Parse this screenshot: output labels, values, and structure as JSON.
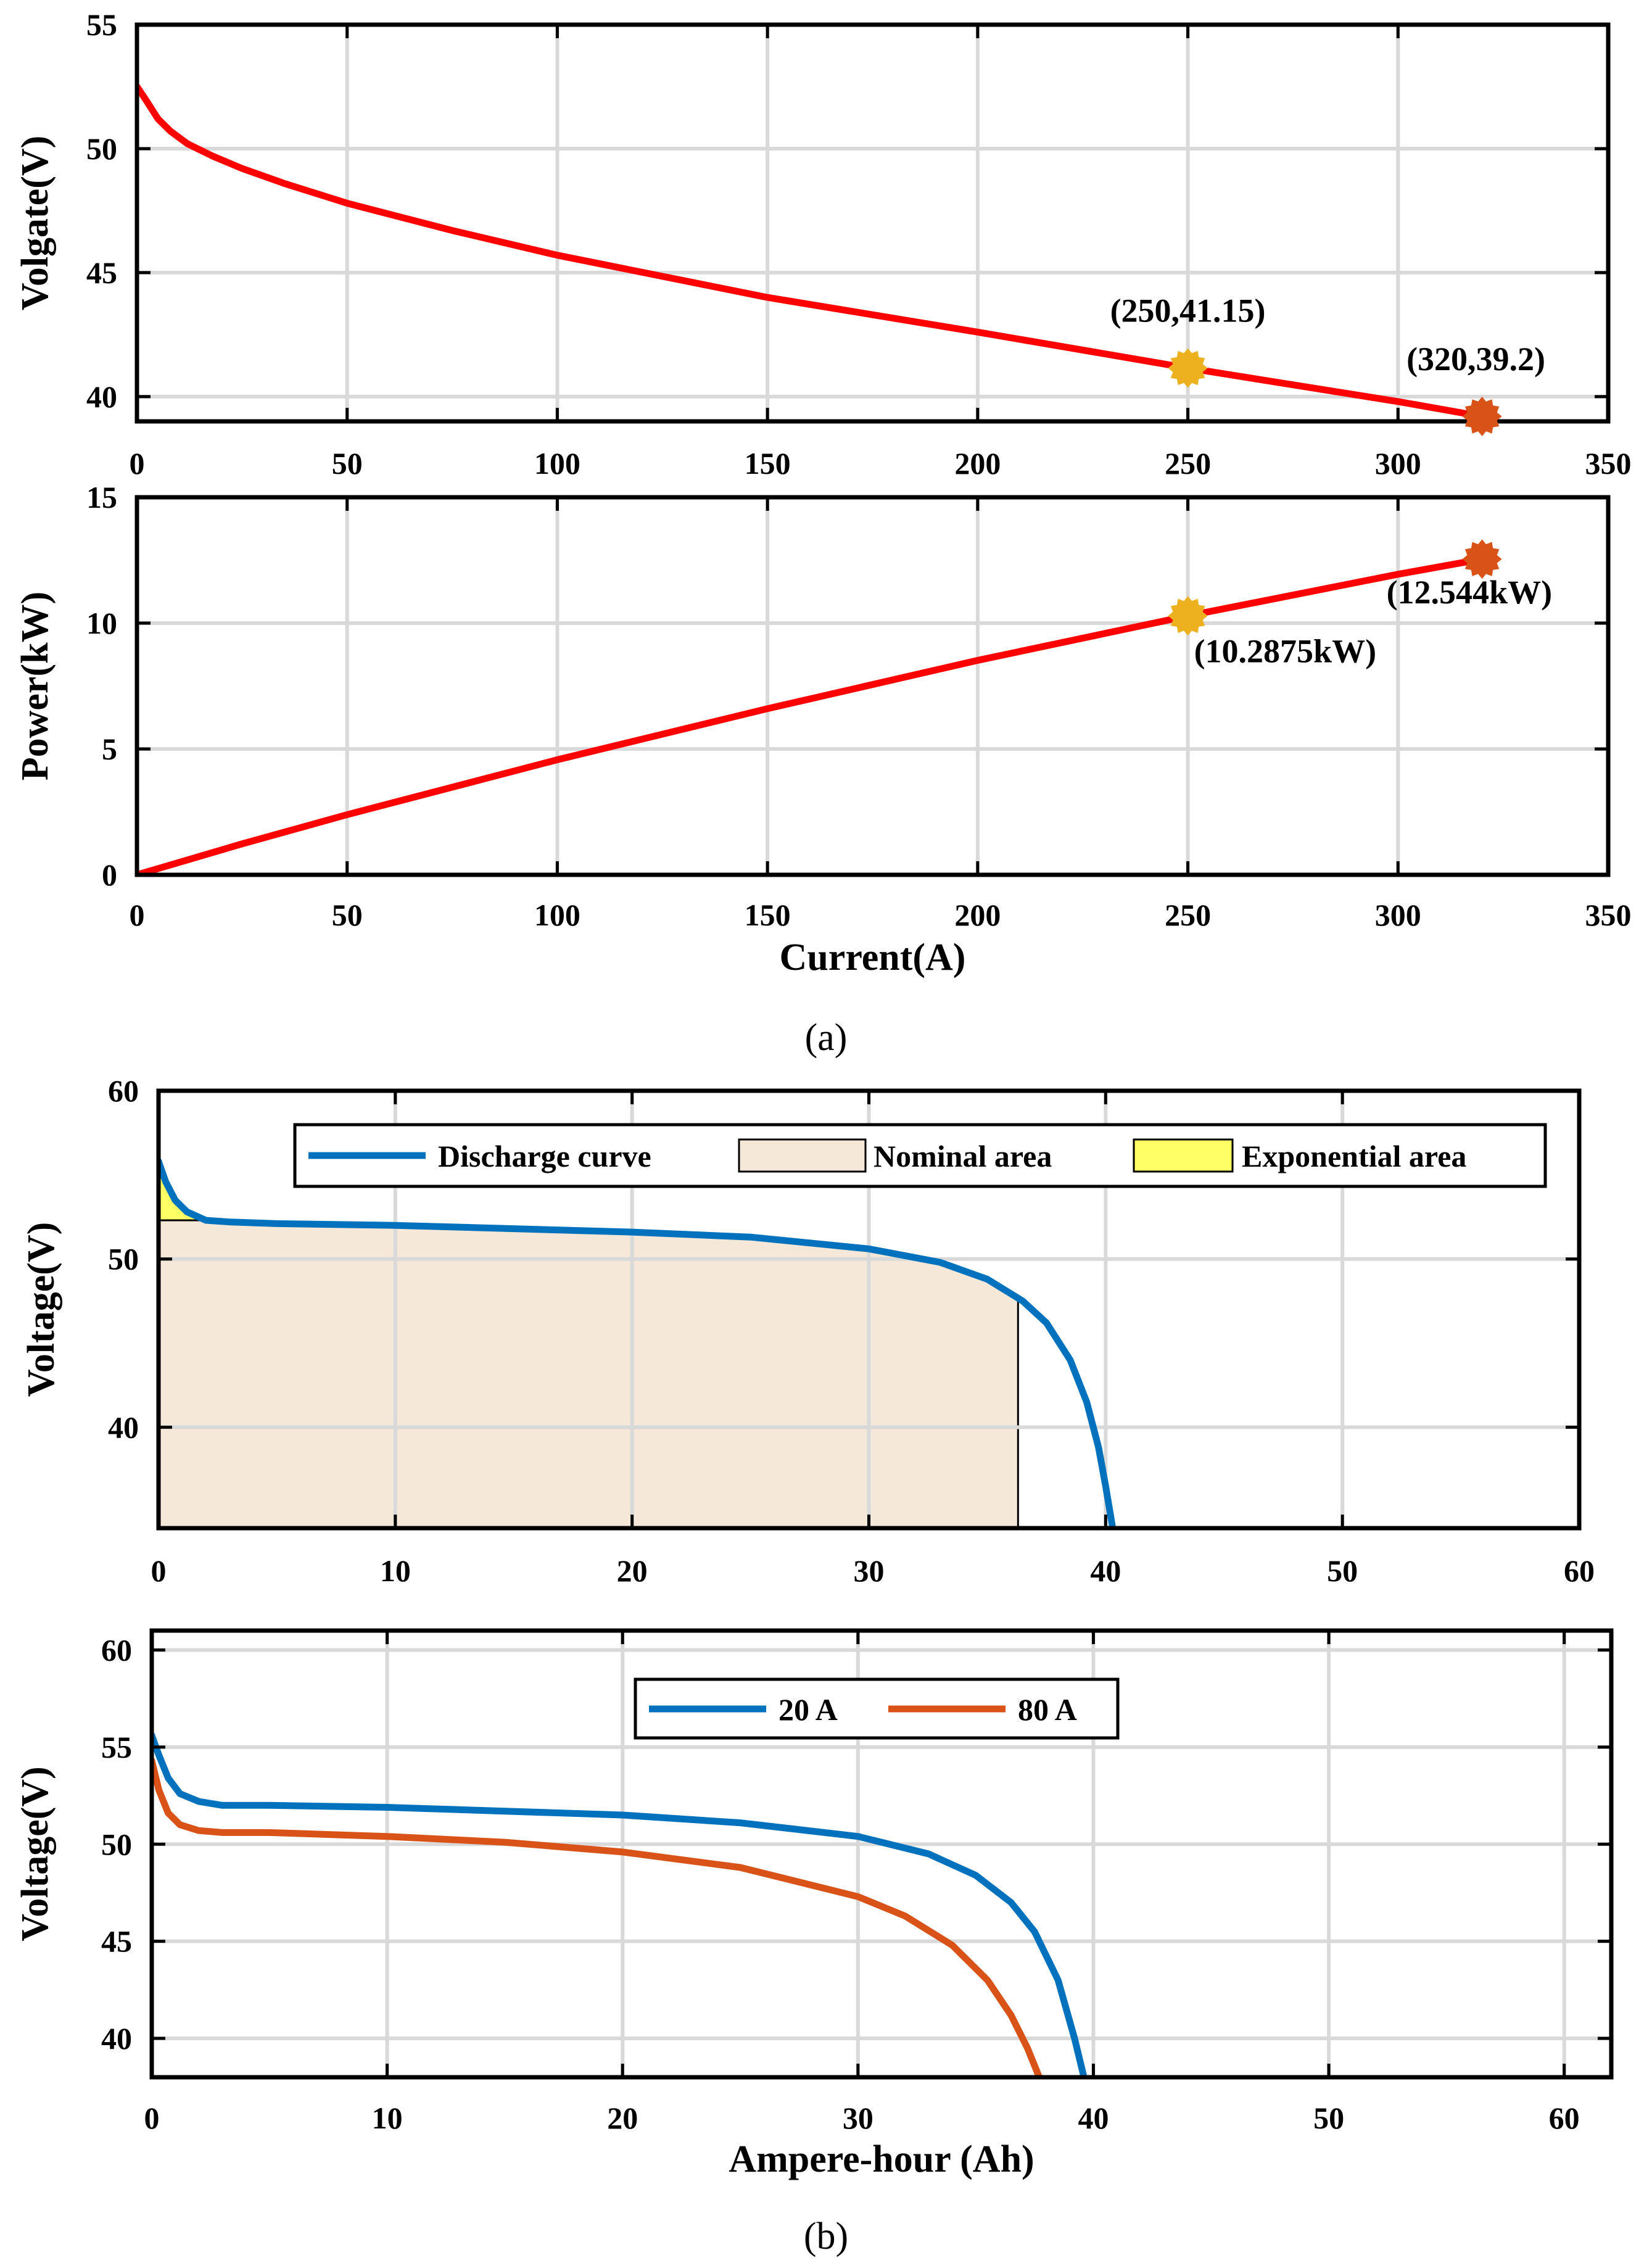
{
  "captions": {
    "a": "(a)",
    "b": "(b)"
  },
  "colors": {
    "red_curve": "#ff0000",
    "blue_curve": "#0072bd",
    "orange_curve": "#d95319",
    "marker_yellow": "#edb120",
    "marker_orange": "#d95319",
    "nominal_fill": "#f5e8d8",
    "exponential_fill": "#ffff66",
    "grid": "#d9d9d9"
  },
  "chart_data": [
    {
      "id": "voltage_vs_current",
      "type": "line",
      "title": "",
      "xlabel": "",
      "ylabel": "Volgate(V)",
      "xlim": [
        0,
        350
      ],
      "ylim": [
        39,
        55
      ],
      "xticks": [
        "0",
        "50",
        "100",
        "150",
        "200",
        "250",
        "300",
        "350"
      ],
      "yticks": [
        "40",
        "45",
        "50",
        "55"
      ],
      "grid": true,
      "series": [
        {
          "name": "Voltage",
          "color": "#ff0000",
          "x": [
            0,
            2,
            5,
            8,
            12,
            18,
            25,
            35,
            50,
            75,
            100,
            150,
            200,
            250,
            300,
            320
          ],
          "y": [
            52.5,
            52.0,
            51.2,
            50.7,
            50.2,
            49.7,
            49.2,
            48.6,
            47.8,
            46.7,
            45.7,
            44.0,
            42.6,
            41.15,
            39.8,
            39.2
          ]
        }
      ],
      "markers": [
        {
          "x": 250,
          "y": 41.15,
          "color": "#edb120",
          "label": "(250,41.15)"
        },
        {
          "x": 320,
          "y": 39.2,
          "color": "#d95319",
          "label": "(320,39.2)"
        }
      ]
    },
    {
      "id": "power_vs_current",
      "type": "line",
      "title": "",
      "xlabel": "Current(A)",
      "ylabel": "Power(kW)",
      "xlim": [
        0,
        350
      ],
      "ylim": [
        0,
        15
      ],
      "xticks": [
        "0",
        "50",
        "100",
        "150",
        "200",
        "250",
        "300",
        "350"
      ],
      "yticks": [
        "0",
        "5",
        "10",
        "15"
      ],
      "grid": true,
      "series": [
        {
          "name": "Power",
          "color": "#ff0000",
          "x": [
            0,
            25,
            50,
            100,
            150,
            200,
            250,
            300,
            320
          ],
          "y": [
            0,
            1.23,
            2.39,
            4.57,
            6.6,
            8.52,
            10.2875,
            11.94,
            12.544
          ]
        }
      ],
      "markers": [
        {
          "x": 250,
          "y": 10.2875,
          "color": "#edb120",
          "label": "(10.2875kW)"
        },
        {
          "x": 320,
          "y": 12.544,
          "color": "#d95319",
          "label": "(12.544kW)"
        }
      ]
    },
    {
      "id": "discharge_curve_areas",
      "type": "area",
      "title": "",
      "xlabel": "",
      "ylabel": "Voltage(V)",
      "xlim": [
        0,
        60
      ],
      "ylim": [
        34,
        60
      ],
      "xticks": [
        "0",
        "10",
        "20",
        "30",
        "40",
        "50",
        "60"
      ],
      "yticks": [
        "40",
        "50",
        "60"
      ],
      "grid": true,
      "legend": [
        "Discharge curve",
        "Nominal area",
        "Exponential area"
      ],
      "series": [
        {
          "name": "Discharge curve",
          "color": "#0072bd",
          "x": [
            0,
            0.3,
            0.7,
            1.2,
            2,
            3,
            5,
            10,
            15,
            20,
            25,
            30,
            33,
            35,
            36.5,
            37.5,
            38.5,
            39.2,
            39.7,
            40,
            40.3
          ],
          "y": [
            55.8,
            54.6,
            53.5,
            52.8,
            52.3,
            52.2,
            52.1,
            52.0,
            51.8,
            51.6,
            51.3,
            50.6,
            49.8,
            48.8,
            47.5,
            46.2,
            44.0,
            41.5,
            38.8,
            36.5,
            34.0
          ]
        }
      ],
      "areas": {
        "nominal": {
          "x_end": 36.3,
          "y_min": 34
        },
        "exponential": {
          "x_end": 1.8,
          "y_floor": 52.3
        }
      }
    },
    {
      "id": "discharge_curves_currents",
      "type": "line",
      "title": "",
      "xlabel": "Ampere-hour (Ah)",
      "ylabel": "Voltage(V)",
      "xlim": [
        0,
        62
      ],
      "ylim": [
        38,
        61
      ],
      "xticks": [
        "0",
        "10",
        "20",
        "30",
        "40",
        "50",
        "60"
      ],
      "yticks": [
        "40",
        "45",
        "50",
        "55",
        "60"
      ],
      "grid": true,
      "legend": [
        "20 A",
        "80 A"
      ],
      "series": [
        {
          "name": "20 A",
          "color": "#0072bd",
          "x": [
            0,
            0.3,
            0.7,
            1.2,
            2,
            3,
            5,
            10,
            15,
            20,
            25,
            30,
            33,
            35,
            36.5,
            37.5,
            38.5,
            39.2,
            39.6
          ],
          "y": [
            55.6,
            54.6,
            53.4,
            52.6,
            52.2,
            52.0,
            52.0,
            51.9,
            51.7,
            51.5,
            51.1,
            50.4,
            49.5,
            48.4,
            47.0,
            45.5,
            43.0,
            40.0,
            38.0
          ]
        },
        {
          "name": "80 A",
          "color": "#d95319",
          "x": [
            0,
            0.3,
            0.7,
            1.2,
            2,
            3,
            5,
            10,
            15,
            20,
            25,
            30,
            32,
            34,
            35.5,
            36.5,
            37.2,
            37.7
          ],
          "y": [
            54.3,
            52.8,
            51.6,
            51.0,
            50.7,
            50.6,
            50.6,
            50.4,
            50.1,
            49.6,
            48.8,
            47.3,
            46.3,
            44.8,
            43.0,
            41.2,
            39.5,
            38.0
          ]
        }
      ]
    }
  ]
}
